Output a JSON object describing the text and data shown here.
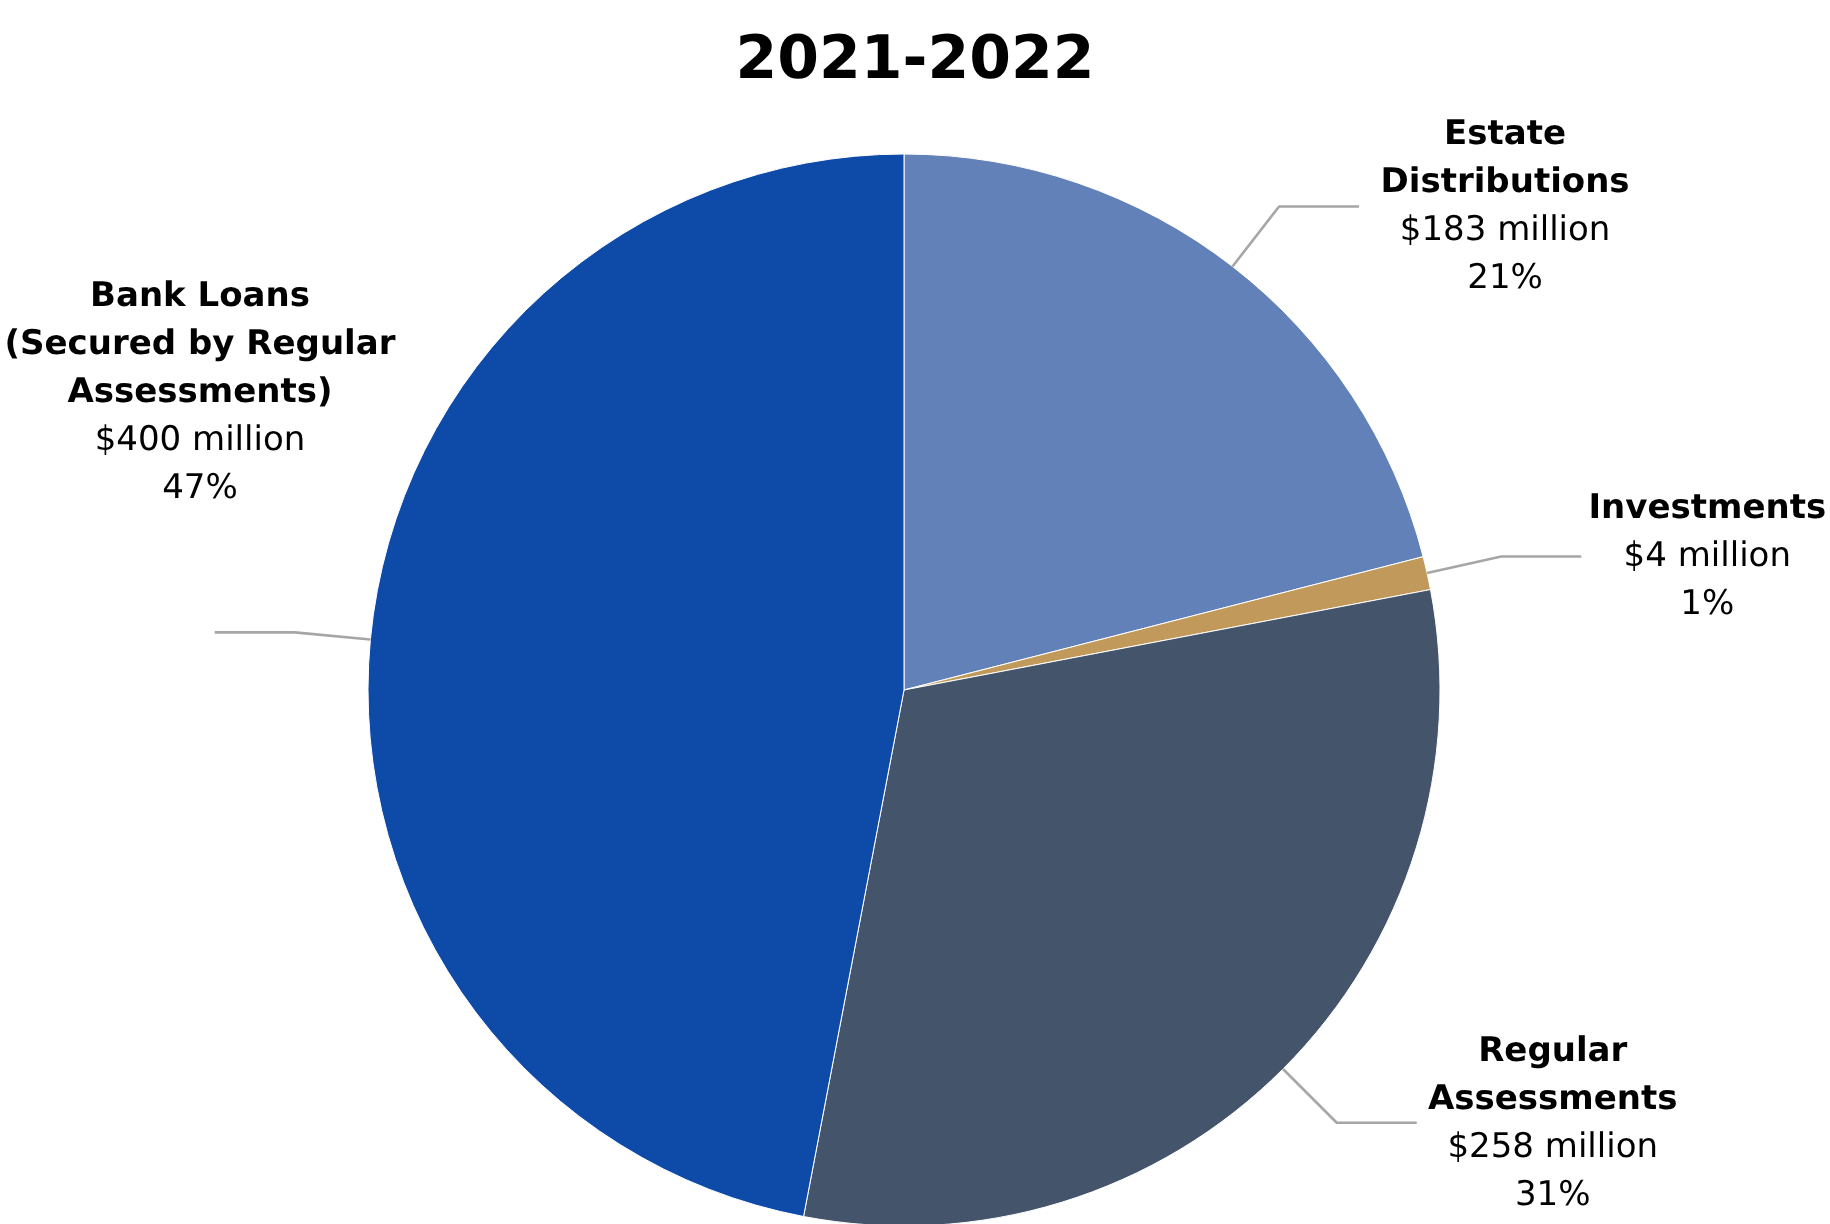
{
  "chart_data": {
    "type": "pie",
    "title": "2021-2022",
    "categories": [
      "Estate\nDistributions",
      "Investments",
      "Regular\nAssessments",
      "Bank Loans\n(Secured by Regular\nAssessments)"
    ],
    "values": [
      21,
      1,
      31,
      47
    ],
    "colors": [
      "#6281b9",
      "#c19a5b",
      "#44546a",
      "#0e4aa8"
    ],
    "value_labels": [
      "$183 million\n21%",
      "$4 million\n1%",
      "$258 million\n31%",
      "$400 million\n47%"
    ]
  }
}
